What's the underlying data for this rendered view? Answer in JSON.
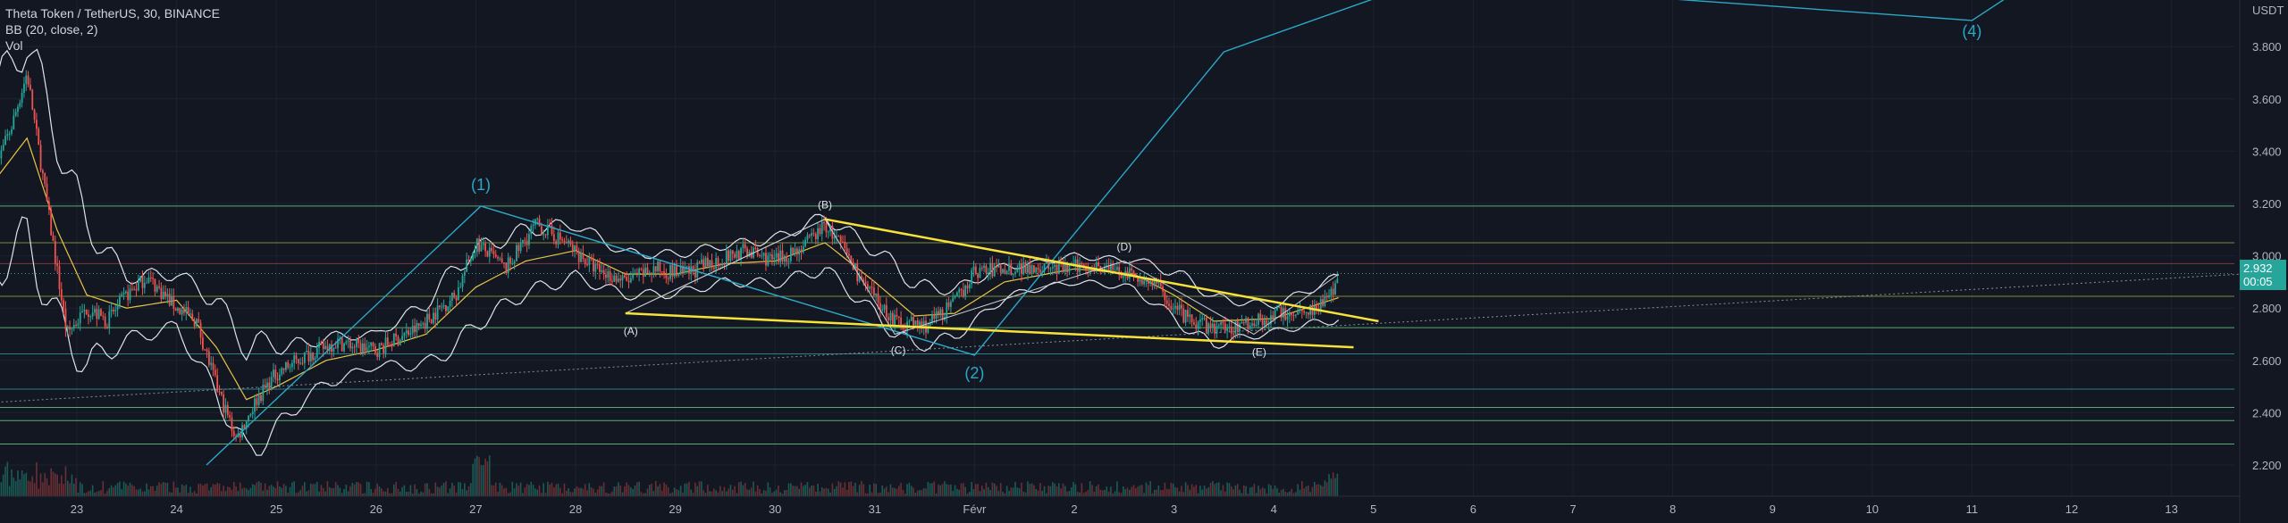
{
  "legend": {
    "symbol": "Theta Token / TetherUS, 30, BINANCE",
    "bb": "BB (20, close, 2)",
    "vol": "Vol"
  },
  "price_axis": {
    "currency": "USDT",
    "last_price": "2.932",
    "countdown": "00:05"
  },
  "colors": {
    "background": "#131722",
    "grid": "#1e2230",
    "axis_text": "#b2b5be",
    "bb_band": "#e0e3eb",
    "bb_basis": "#e8c547",
    "wave": "#2aa8c9",
    "triangle": "#f7e23a",
    "up_candle": "#26a69a",
    "down_candle": "#ef5350",
    "price_tag": "#26a69a"
  },
  "chart_data": {
    "type": "candlestick",
    "title": "Theta Token / TetherUS, 30, BINANCE",
    "x_ticks": [
      "23",
      "24",
      "25",
      "26",
      "27",
      "28",
      "29",
      "30",
      "31",
      "Févr",
      "2",
      "3",
      "4",
      "5",
      "6",
      "7",
      "8",
      "9",
      "10",
      "11",
      "12",
      "13"
    ],
    "y_ticks": [
      "3.800",
      "3.600",
      "3.400",
      "3.200",
      "3.000",
      "2.800",
      "2.600",
      "2.400",
      "2.200"
    ],
    "ylim": [
      2.08,
      4.0
    ],
    "xlim_days": [
      22.2,
      44.7
    ],
    "price_path": [
      [
        22.2,
        3.35
      ],
      [
        22.35,
        3.5
      ],
      [
        22.5,
        3.7
      ],
      [
        22.7,
        3.2
      ],
      [
        22.9,
        2.7
      ],
      [
        23.1,
        2.8
      ],
      [
        23.3,
        2.75
      ],
      [
        23.5,
        2.85
      ],
      [
        23.7,
        2.92
      ],
      [
        24.0,
        2.8
      ],
      [
        24.2,
        2.75
      ],
      [
        24.4,
        2.5
      ],
      [
        24.6,
        2.3
      ],
      [
        24.8,
        2.45
      ],
      [
        25.0,
        2.55
      ],
      [
        25.3,
        2.62
      ],
      [
        25.6,
        2.67
      ],
      [
        26.0,
        2.64
      ],
      [
        26.4,
        2.72
      ],
      [
        26.8,
        2.85
      ],
      [
        27.0,
        3.05
      ],
      [
        27.3,
        2.95
      ],
      [
        27.6,
        3.12
      ],
      [
        27.9,
        3.05
      ],
      [
        28.2,
        2.95
      ],
      [
        28.5,
        2.9
      ],
      [
        28.8,
        2.95
      ],
      [
        29.1,
        2.93
      ],
      [
        29.4,
        2.98
      ],
      [
        29.7,
        3.02
      ],
      [
        30.0,
        2.98
      ],
      [
        30.3,
        3.04
      ],
      [
        30.5,
        3.12
      ],
      [
        30.7,
        3.02
      ],
      [
        30.9,
        2.88
      ],
      [
        31.2,
        2.75
      ],
      [
        31.5,
        2.73
      ],
      [
        31.8,
        2.82
      ],
      [
        32.0,
        2.94
      ],
      [
        32.3,
        2.95
      ],
      [
        32.6,
        2.96
      ],
      [
        32.9,
        2.95
      ],
      [
        33.2,
        2.97
      ],
      [
        33.5,
        2.93
      ],
      [
        33.8,
        2.9
      ],
      [
        34.0,
        2.8
      ],
      [
        34.2,
        2.74
      ],
      [
        34.5,
        2.72
      ],
      [
        34.8,
        2.75
      ],
      [
        35.1,
        2.78
      ],
      [
        35.4,
        2.8
      ],
      [
        35.6,
        2.86
      ],
      [
        35.65,
        2.93
      ]
    ],
    "bb_basis": [
      [
        22.2,
        3.3
      ],
      [
        22.5,
        3.45
      ],
      [
        22.8,
        3.1
      ],
      [
        23.1,
        2.85
      ],
      [
        23.5,
        2.8
      ],
      [
        24.0,
        2.83
      ],
      [
        24.4,
        2.65
      ],
      [
        24.7,
        2.45
      ],
      [
        25.0,
        2.5
      ],
      [
        25.5,
        2.6
      ],
      [
        26.0,
        2.64
      ],
      [
        26.5,
        2.7
      ],
      [
        27.0,
        2.88
      ],
      [
        27.5,
        2.98
      ],
      [
        28.0,
        3.02
      ],
      [
        28.5,
        2.93
      ],
      [
        29.0,
        2.93
      ],
      [
        29.5,
        2.97
      ],
      [
        30.0,
        2.98
      ],
      [
        30.5,
        3.05
      ],
      [
        31.0,
        2.9
      ],
      [
        31.4,
        2.77
      ],
      [
        31.8,
        2.78
      ],
      [
        32.3,
        2.9
      ],
      [
        33.0,
        2.95
      ],
      [
        33.6,
        2.93
      ],
      [
        34.0,
        2.85
      ],
      [
        34.4,
        2.75
      ],
      [
        35.0,
        2.76
      ],
      [
        35.65,
        2.84
      ]
    ],
    "bb_width": [
      [
        22.2,
        0.35
      ],
      [
        22.6,
        0.38
      ],
      [
        23.0,
        0.3
      ],
      [
        23.5,
        0.12
      ],
      [
        24.0,
        0.1
      ],
      [
        24.4,
        0.18
      ],
      [
        24.8,
        0.2
      ],
      [
        25.3,
        0.1
      ],
      [
        26.0,
        0.06
      ],
      [
        26.8,
        0.15
      ],
      [
        27.5,
        0.12
      ],
      [
        28.5,
        0.08
      ],
      [
        29.5,
        0.07
      ],
      [
        30.5,
        0.1
      ],
      [
        31.2,
        0.13
      ],
      [
        31.8,
        0.09
      ],
      [
        32.5,
        0.05
      ],
      [
        33.5,
        0.05
      ],
      [
        34.2,
        0.1
      ],
      [
        35.0,
        0.05
      ],
      [
        35.65,
        0.08
      ]
    ],
    "horizontal_levels": [
      {
        "price": 3.19,
        "color": "#5ea872"
      },
      {
        "price": 3.05,
        "color": "#7d8a3a"
      },
      {
        "price": 2.97,
        "color": "#7a3a48"
      },
      {
        "price": 2.845,
        "color": "#7d8a3a"
      },
      {
        "price": 2.725,
        "color": "#5ea872"
      },
      {
        "price": 2.625,
        "color": "#2a7e8e"
      },
      {
        "price": 2.49,
        "color": "#2a7e8e"
      },
      {
        "price": 2.42,
        "color": "#5ea872"
      },
      {
        "price": 2.37,
        "color": "#5ea872"
      },
      {
        "price": 2.28,
        "color": "#5ea872"
      }
    ],
    "elliott_wave_main": [
      {
        "day": 24.3,
        "price": 2.2
      },
      {
        "day": 27.05,
        "price": 3.19,
        "label": "(1)"
      },
      {
        "day": 32.0,
        "price": 2.62,
        "label": "(2)"
      },
      {
        "day": 34.5,
        "price": 3.78
      },
      {
        "day": 36.5,
        "price": 4.05
      },
      {
        "day": 42.0,
        "price": 3.9,
        "label": "(4)"
      },
      {
        "day": 42.6,
        "price": 4.05
      }
    ],
    "elliott_wave_sub": [
      {
        "day": 28.5,
        "price": 2.78,
        "label": "(A)"
      },
      {
        "day": 30.5,
        "price": 3.14,
        "label": "(B)"
      },
      {
        "day": 31.2,
        "price": 2.7,
        "label": "(C)"
      },
      {
        "day": 33.5,
        "price": 2.98,
        "label": "(D)"
      },
      {
        "day": 34.8,
        "price": 2.7,
        "label": "(E)"
      },
      {
        "day": 35.65,
        "price": 2.93
      }
    ],
    "triangle_lines": [
      {
        "from": {
          "day": 30.5,
          "price": 3.14
        },
        "to": {
          "day": 36.05,
          "price": 2.75
        }
      },
      {
        "from": {
          "day": 28.5,
          "price": 2.78
        },
        "to": {
          "day": 35.8,
          "price": 2.65
        }
      }
    ],
    "wave_channel": [
      {
        "from": {
          "day": 27.05,
          "price": 3.19
        },
        "to": {
          "day": 32.0,
          "price": 2.62
        }
      },
      {
        "from": {
          "day": 28.5,
          "price": 2.78
        },
        "to": {
          "day": 30.5,
          "price": 3.14
        }
      }
    ],
    "dotted_trend": {
      "from": {
        "day": 22.2,
        "price": 2.44
      },
      "to": {
        "day": 44.7,
        "price": 2.93
      }
    },
    "wave_labels": [
      "(1)",
      "(2)",
      "(4)",
      "(A)",
      "(B)",
      "(C)",
      "(D)",
      "(E)"
    ]
  }
}
